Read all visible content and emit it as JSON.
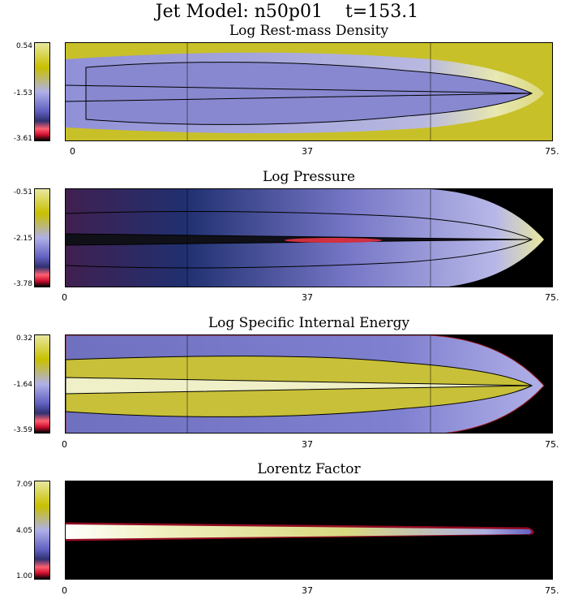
{
  "title": "Jet Model: n50p01    t=153.1",
  "axis_ticks": [
    "0",
    "37",
    "75."
  ],
  "panels": [
    {
      "title": "Log Rest-mass Density",
      "cbar": {
        "max": "0.54",
        "mid": "-1.53",
        "min": "-3.61"
      }
    },
    {
      "title": "Log Pressure",
      "cbar": {
        "max": "-0.51",
        "mid": "-2.15",
        "min": "-3.78"
      }
    },
    {
      "title": "Log Specific Internal Energy",
      "cbar": {
        "max": "0.32",
        "mid": "-1.64",
        "min": "-3.59"
      }
    },
    {
      "title": "Lorentz Factor",
      "cbar": {
        "max": "7.09",
        "mid": "4.05",
        "min": "1.00"
      }
    }
  ],
  "colormap": [
    "#000000",
    "#d01030",
    "#ff6070",
    "#303070",
    "#6060c0",
    "#b0b0e8",
    "#d0d080",
    "#c8c000",
    "#e8e8a0",
    "#ffffff"
  ]
}
